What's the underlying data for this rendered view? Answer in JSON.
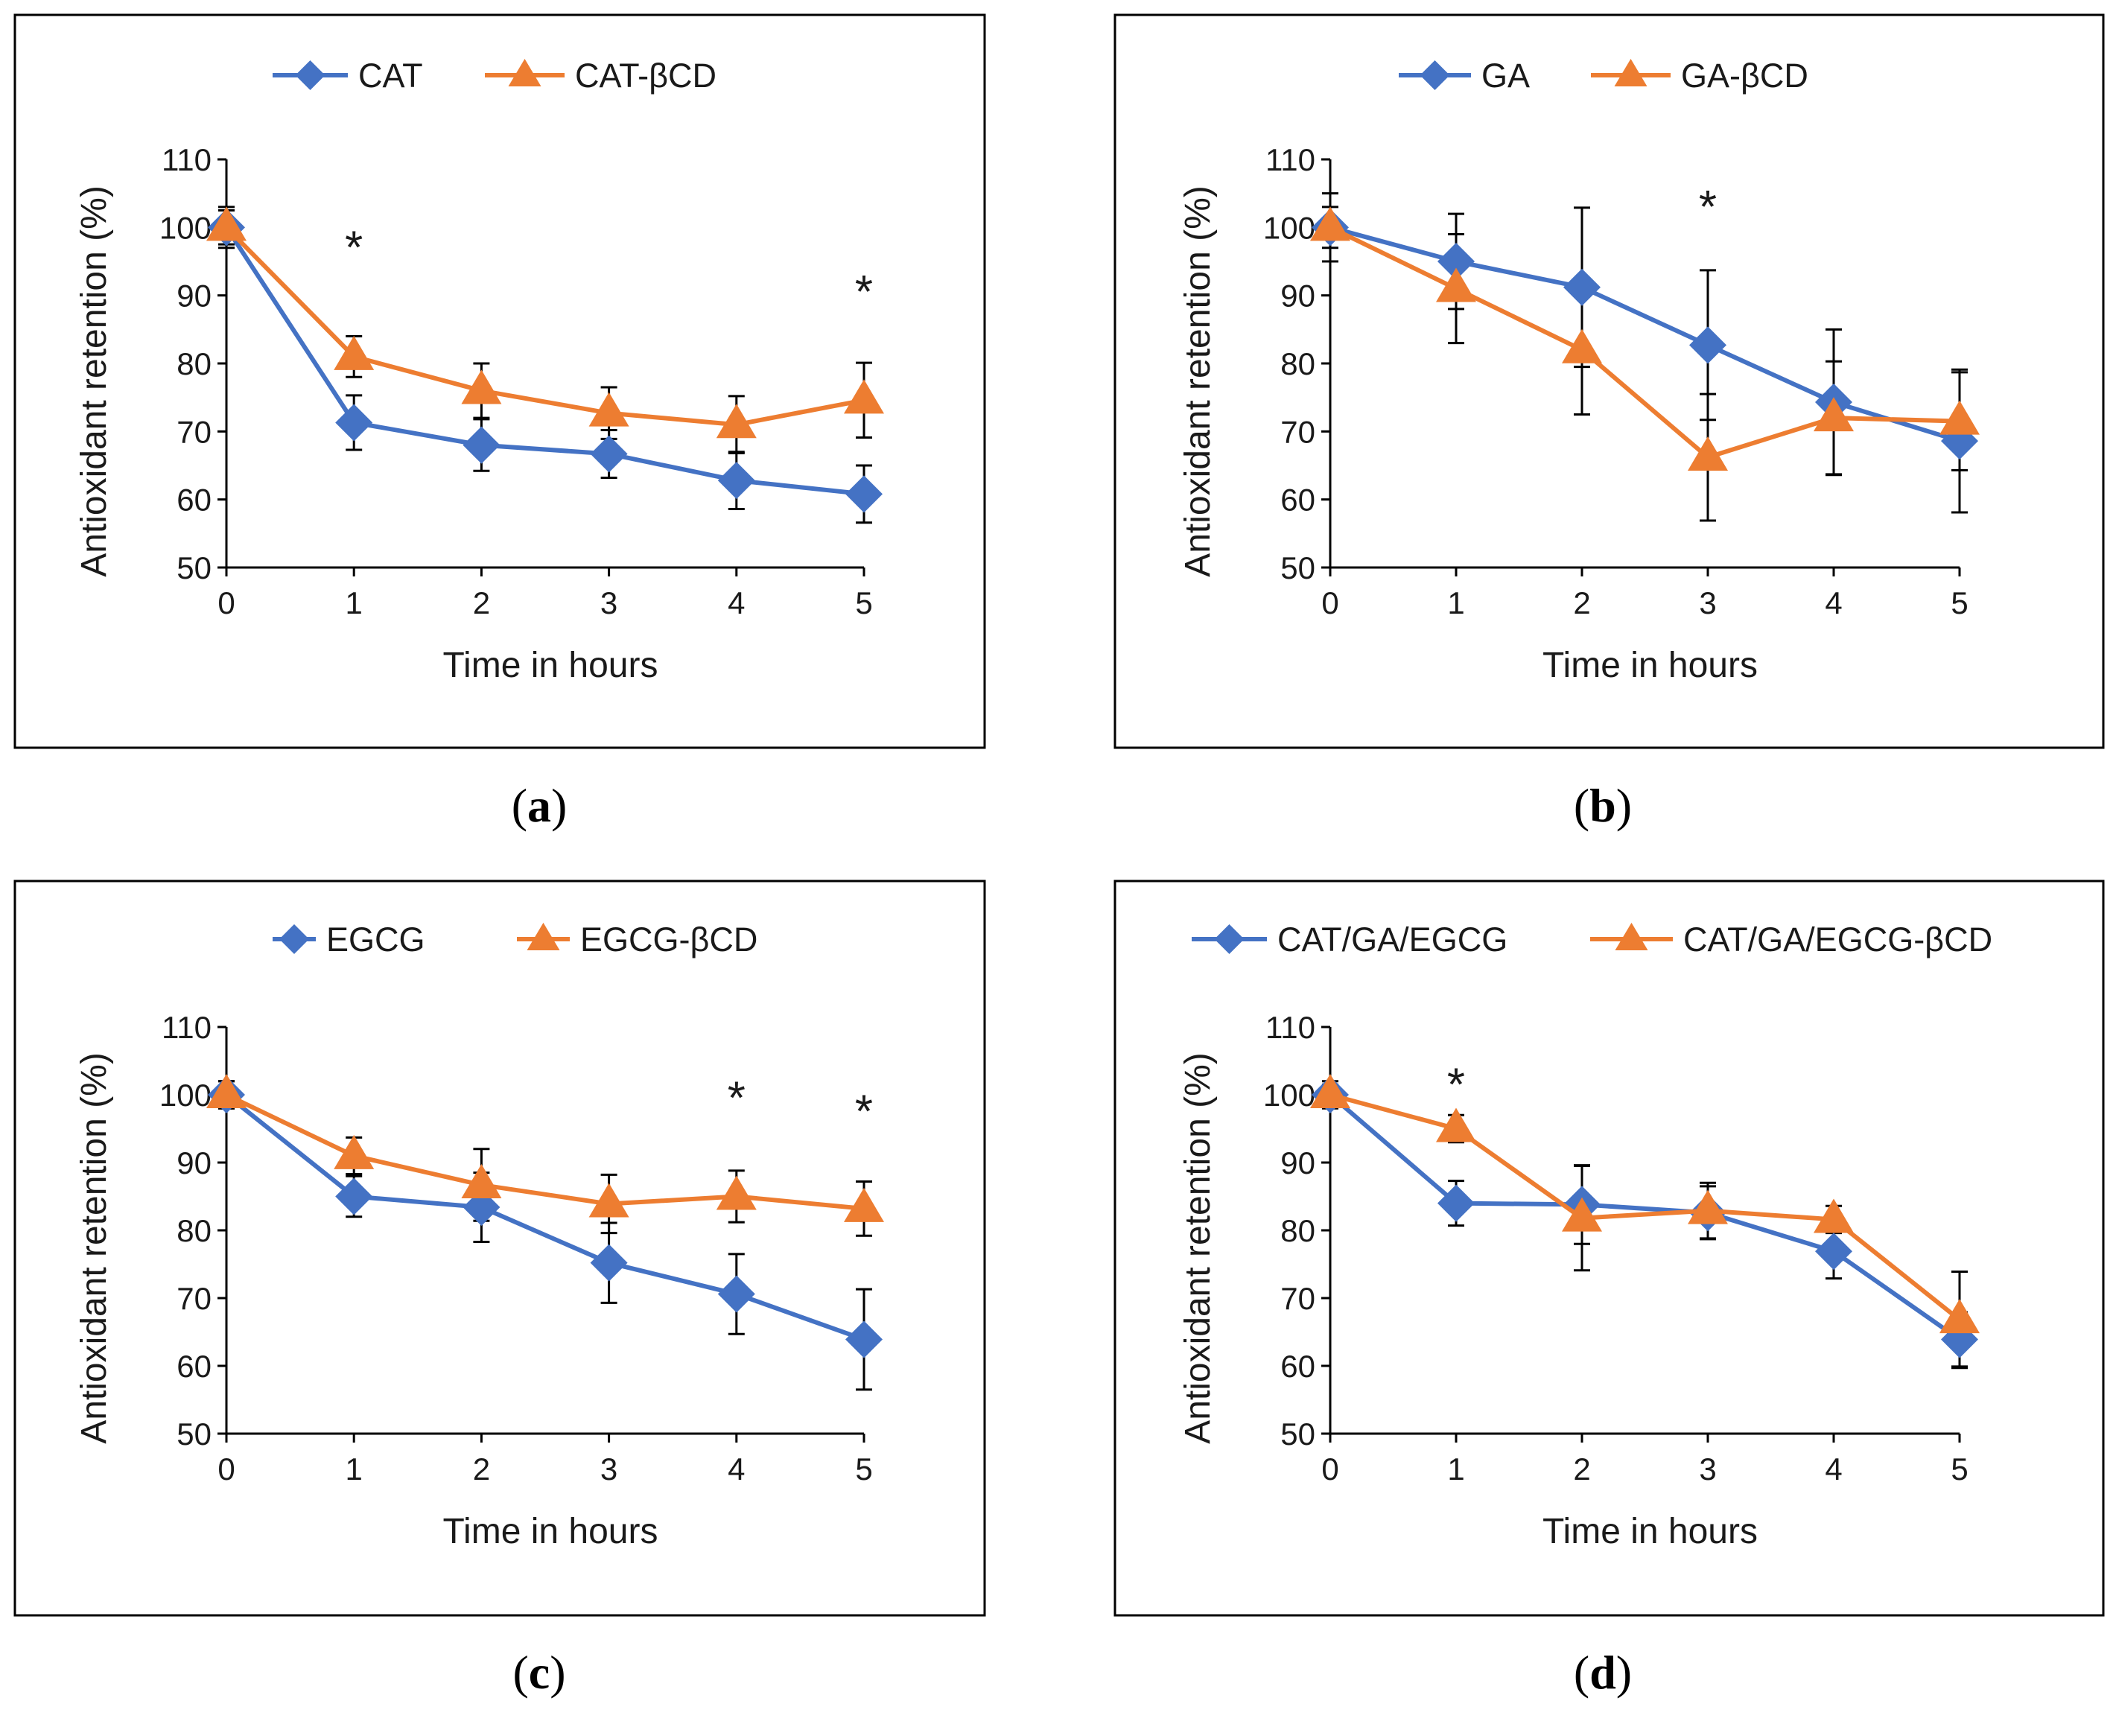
{
  "colors": {
    "series1": "#4472C4",
    "series2": "#ED7D31",
    "axis": "#000000",
    "frame": "#000000"
  },
  "chart_data": [
    {
      "type": "line",
      "panel_label": "a",
      "xlabel": "Time in hours",
      "ylabel": "Antioxidant retention (%)",
      "x": [
        0,
        1,
        2,
        3,
        4,
        5
      ],
      "ylim": [
        50,
        110
      ],
      "yticks": [
        50,
        60,
        70,
        80,
        90,
        100,
        110
      ],
      "xticks": [
        0,
        1,
        2,
        3,
        4,
        5
      ],
      "series": [
        {
          "name": "CAT",
          "marker": "diamond",
          "values": [
            100,
            71.3,
            68,
            66.7,
            62.8,
            60.8
          ],
          "errors": [
            3,
            4,
            3.8,
            3.5,
            4.2,
            4.2
          ]
        },
        {
          "name": "CAT-βCD",
          "marker": "triangle",
          "values": [
            100,
            81,
            76,
            72.7,
            71,
            74.6
          ],
          "errors": [
            2.5,
            3,
            4,
            3.8,
            4.2,
            5.5
          ]
        }
      ],
      "annotations": [
        {
          "text": "*",
          "x": 1,
          "y": 98
        },
        {
          "text": "*",
          "x": 5,
          "y": 91.5
        }
      ]
    },
    {
      "type": "line",
      "panel_label": "b",
      "xlabel": "Time in hours",
      "ylabel": "Antioxidant retention (%)",
      "x": [
        0,
        1,
        2,
        3,
        4,
        5
      ],
      "ylim": [
        50,
        110
      ],
      "yticks": [
        50,
        60,
        70,
        80,
        90,
        100,
        110
      ],
      "xticks": [
        0,
        1,
        2,
        3,
        4,
        5
      ],
      "series": [
        {
          "name": "GA",
          "marker": "diamond",
          "values": [
            100,
            95,
            91.2,
            82.7,
            74.3,
            68.6
          ],
          "errors": [
            5,
            7,
            11.7,
            11,
            10.7,
            10.5
          ]
        },
        {
          "name": "GA-βCD",
          "marker": "triangle",
          "values": [
            100,
            91,
            82,
            66.2,
            72,
            71.5
          ],
          "errors": [
            3,
            8,
            9.5,
            9.3,
            8.3,
            7.2
          ]
        }
      ],
      "annotations": [
        {
          "text": "*",
          "x": 3,
          "y": 104
        }
      ]
    },
    {
      "type": "line",
      "panel_label": "c",
      "xlabel": "Time in hours",
      "ylabel": "Antioxidant retention (%)",
      "x": [
        0,
        1,
        2,
        3,
        4,
        5
      ],
      "ylim": [
        50,
        110
      ],
      "yticks": [
        50,
        60,
        70,
        80,
        90,
        100,
        110
      ],
      "xticks": [
        0,
        1,
        2,
        3,
        4,
        5
      ],
      "series": [
        {
          "name": "EGCG",
          "marker": "diamond",
          "values": [
            100,
            85,
            83.4,
            75.2,
            70.6,
            63.9
          ],
          "errors": [
            2,
            3,
            5.1,
            5.9,
            5.9,
            7.4
          ]
        },
        {
          "name": "EGCG-βCD",
          "marker": "triangle",
          "values": [
            100,
            91,
            86.7,
            83.9,
            85,
            83.2
          ],
          "errors": [
            2,
            2.7,
            5.3,
            4.3,
            3.8,
            4
          ]
        }
      ],
      "annotations": [
        {
          "text": "*",
          "x": 4,
          "y": 100.5
        },
        {
          "text": "*",
          "x": 5,
          "y": 98.5
        }
      ]
    },
    {
      "type": "line",
      "panel_label": "d",
      "xlabel": "Time in hours",
      "ylabel": "Antioxidant retention (%)",
      "x": [
        0,
        1,
        2,
        3,
        4,
        5
      ],
      "ylim": [
        50,
        110
      ],
      "yticks": [
        50,
        60,
        70,
        80,
        90,
        100,
        110
      ],
      "xticks": [
        0,
        1,
        2,
        3,
        4,
        5
      ],
      "series": [
        {
          "name": "CAT/GA/EGCG",
          "marker": "diamond",
          "values": [
            100,
            84,
            83.8,
            82.6,
            76.9,
            63.9
          ],
          "errors": [
            2,
            3.3,
            5.8,
            3.9,
            4,
            4
          ]
        },
        {
          "name": "CAT/GA/EGCG-βCD",
          "marker": "triangle",
          "values": [
            100,
            95,
            81.8,
            82.9,
            81.6,
            66.8
          ],
          "errors": [
            1.5,
            2,
            7.7,
            4.1,
            2,
            7.1
          ]
        }
      ],
      "annotations": [
        {
          "text": "*",
          "x": 1,
          "y": 102.5
        }
      ]
    }
  ]
}
